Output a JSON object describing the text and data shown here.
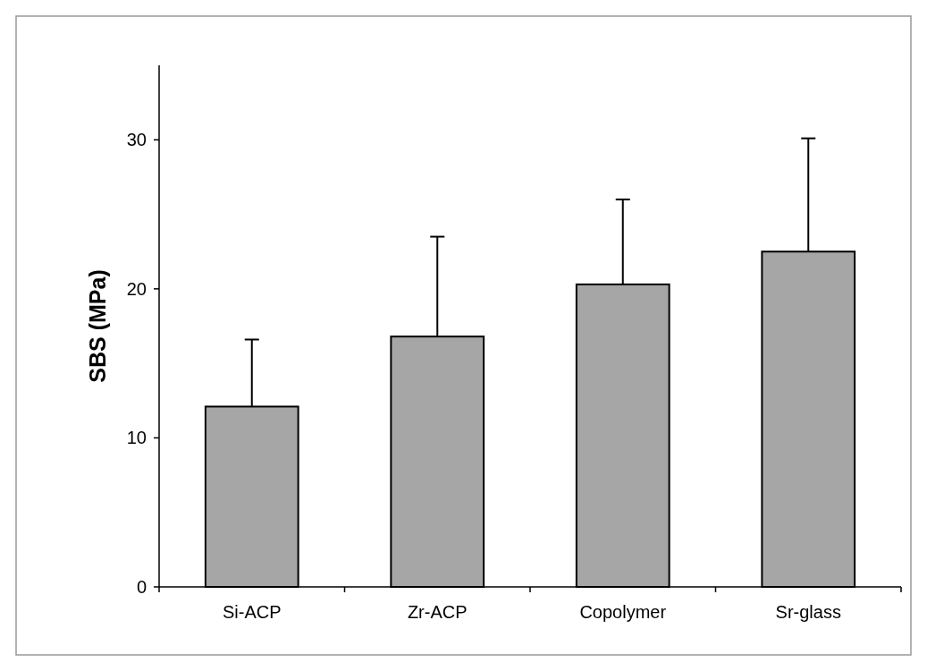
{
  "chart_data": {
    "type": "bar",
    "ylabel": "SBS (MPa)",
    "categories": [
      "Si-ACP",
      "Zr-ACP",
      "Copolymer",
      "Sr-glass"
    ],
    "values": [
      12.1,
      16.8,
      20.3,
      22.5
    ],
    "errors": [
      [
        12.1,
        16.6
      ],
      [
        16.8,
        23.5
      ],
      [
        20.3,
        26.0
      ],
      [
        22.5,
        30.1
      ]
    ],
    "color": "#a6a6a6",
    "ylim": [
      0,
      35
    ],
    "yticks": [
      0,
      10,
      20,
      30
    ],
    "grid": false
  }
}
